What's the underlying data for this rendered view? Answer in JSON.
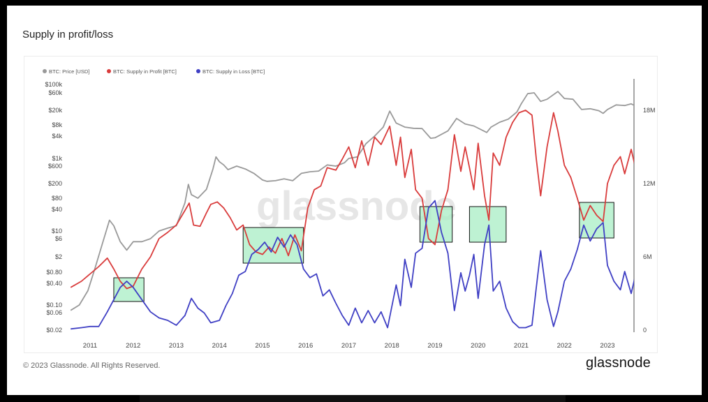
{
  "chart_data": {
    "type": "line",
    "title": "Supply in profit/loss",
    "watermark": "glassnode",
    "legend": [
      {
        "name": "BTC: Price [USD]",
        "color": "#999999"
      },
      {
        "name": "BTC: Supply in Profit [BTC]",
        "color": "#d93b3b"
      },
      {
        "name": "BTC: Supply in Loss [BTC]",
        "color": "#3f3fc4"
      }
    ],
    "x_ticks": [
      "2011",
      "2012",
      "2013",
      "2014",
      "2015",
      "2016",
      "2017",
      "2018",
      "2019",
      "2020",
      "2021",
      "2022",
      "2023"
    ],
    "y_left_ticks": [
      "$100k",
      "$60k",
      "$20k",
      "$8k",
      "$4k",
      "$1k",
      "$600",
      "$200",
      "$80",
      "$40",
      "$10",
      "$6",
      "$2",
      "$0.80",
      "$0.40",
      "$0.10",
      "$0.06",
      "$0.02"
    ],
    "y_right_ticks": [
      "18M",
      "12M",
      "6M",
      "0"
    ],
    "y_left_scale": "log",
    "y_right_range": [
      0,
      18000000
    ],
    "highlight_boxes": [
      {
        "x_from": 2011.55,
        "x_to": 2012.25
      },
      {
        "x_from": 2014.55,
        "x_to": 2015.95
      },
      {
        "x_from": 2018.65,
        "x_to": 2019.4
      },
      {
        "x_from": 2019.8,
        "x_to": 2020.65
      },
      {
        "x_from": 2022.35,
        "x_to": 2023.15
      }
    ],
    "series": [
      {
        "name": "BTC: Price [USD]",
        "axis": "left",
        "points": [
          [
            2010.55,
            0.07
          ],
          [
            2010.75,
            0.1
          ],
          [
            2010.95,
            0.25
          ],
          [
            2011.1,
            0.9
          ],
          [
            2011.3,
            5
          ],
          [
            2011.45,
            20
          ],
          [
            2011.55,
            14
          ],
          [
            2011.7,
            5
          ],
          [
            2011.85,
            3
          ],
          [
            2012.0,
            5
          ],
          [
            2012.2,
            5
          ],
          [
            2012.4,
            6
          ],
          [
            2012.6,
            10
          ],
          [
            2012.8,
            12
          ],
          [
            2013.0,
            14
          ],
          [
            2013.2,
            60
          ],
          [
            2013.28,
            190
          ],
          [
            2013.35,
            100
          ],
          [
            2013.5,
            80
          ],
          [
            2013.7,
            140
          ],
          [
            2013.85,
            500
          ],
          [
            2013.92,
            1100
          ],
          [
            2014.0,
            800
          ],
          [
            2014.1,
            650
          ],
          [
            2014.2,
            480
          ],
          [
            2014.4,
            600
          ],
          [
            2014.6,
            500
          ],
          [
            2014.8,
            380
          ],
          [
            2015.0,
            250
          ],
          [
            2015.1,
            230
          ],
          [
            2015.3,
            240
          ],
          [
            2015.5,
            270
          ],
          [
            2015.7,
            240
          ],
          [
            2015.9,
            380
          ],
          [
            2016.1,
            420
          ],
          [
            2016.3,
            440
          ],
          [
            2016.5,
            650
          ],
          [
            2016.7,
            600
          ],
          [
            2016.9,
            750
          ],
          [
            2017.0,
            1000
          ],
          [
            2017.2,
            1100
          ],
          [
            2017.4,
            2500
          ],
          [
            2017.6,
            4000
          ],
          [
            2017.8,
            7000
          ],
          [
            2017.95,
            19000
          ],
          [
            2018.1,
            9000
          ],
          [
            2018.3,
            7000
          ],
          [
            2018.5,
            6500
          ],
          [
            2018.7,
            6400
          ],
          [
            2018.9,
            3500
          ],
          [
            2019.0,
            3600
          ],
          [
            2019.3,
            5500
          ],
          [
            2019.5,
            12000
          ],
          [
            2019.7,
            8500
          ],
          [
            2019.9,
            7500
          ],
          [
            2020.2,
            5000
          ],
          [
            2020.3,
            7000
          ],
          [
            2020.5,
            9500
          ],
          [
            2020.7,
            11500
          ],
          [
            2020.9,
            18000
          ],
          [
            2021.0,
            30000
          ],
          [
            2021.15,
            57000
          ],
          [
            2021.3,
            60000
          ],
          [
            2021.45,
            35000
          ],
          [
            2021.6,
            40000
          ],
          [
            2021.85,
            65000
          ],
          [
            2022.0,
            42000
          ],
          [
            2022.2,
            40000
          ],
          [
            2022.4,
            21000
          ],
          [
            2022.6,
            22000
          ],
          [
            2022.8,
            19500
          ],
          [
            2022.9,
            16500
          ],
          [
            2023.0,
            21000
          ],
          [
            2023.2,
            28000
          ],
          [
            2023.4,
            27000
          ],
          [
            2023.55,
            30000
          ],
          [
            2023.65,
            26000
          ]
        ]
      },
      {
        "name": "BTC: Supply in Profit [BTC]",
        "axis": "right",
        "points": [
          [
            2010.55,
            3.5
          ],
          [
            2010.8,
            4
          ],
          [
            2011.0,
            4.6
          ],
          [
            2011.2,
            5.2
          ],
          [
            2011.4,
            5.9
          ],
          [
            2011.55,
            5.0
          ],
          [
            2011.7,
            4.0
          ],
          [
            2011.85,
            3.4
          ],
          [
            2012.0,
            3.6
          ],
          [
            2012.2,
            5.0
          ],
          [
            2012.4,
            6.0
          ],
          [
            2012.6,
            7.5
          ],
          [
            2012.8,
            8.0
          ],
          [
            2013.0,
            8.6
          ],
          [
            2013.2,
            9.8
          ],
          [
            2013.3,
            10.4
          ],
          [
            2013.4,
            8.6
          ],
          [
            2013.55,
            8.5
          ],
          [
            2013.7,
            9.6
          ],
          [
            2013.8,
            10.3
          ],
          [
            2013.95,
            10.5
          ],
          [
            2014.1,
            10.0
          ],
          [
            2014.25,
            9.2
          ],
          [
            2014.4,
            8.2
          ],
          [
            2014.55,
            8.6
          ],
          [
            2014.7,
            7.0
          ],
          [
            2014.85,
            6.4
          ],
          [
            2015.0,
            6.2
          ],
          [
            2015.15,
            6.8
          ],
          [
            2015.3,
            6.3
          ],
          [
            2015.45,
            7.5
          ],
          [
            2015.6,
            6.1
          ],
          [
            2015.75,
            7.8
          ],
          [
            2015.9,
            6.5
          ],
          [
            2016.05,
            10.0
          ],
          [
            2016.2,
            11.5
          ],
          [
            2016.35,
            11.8
          ],
          [
            2016.5,
            13.3
          ],
          [
            2016.7,
            13.1
          ],
          [
            2016.85,
            14.0
          ],
          [
            2017.0,
            15.0
          ],
          [
            2017.15,
            13.3
          ],
          [
            2017.3,
            15.5
          ],
          [
            2017.45,
            13.5
          ],
          [
            2017.6,
            15.8
          ],
          [
            2017.75,
            15.2
          ],
          [
            2017.95,
            16.7
          ],
          [
            2018.1,
            13.5
          ],
          [
            2018.2,
            15.8
          ],
          [
            2018.3,
            12.5
          ],
          [
            2018.45,
            14.8
          ],
          [
            2018.55,
            11.5
          ],
          [
            2018.7,
            10.8
          ],
          [
            2018.85,
            7.5
          ],
          [
            2019.0,
            7.0
          ],
          [
            2019.15,
            9.8
          ],
          [
            2019.3,
            11.5
          ],
          [
            2019.45,
            16.0
          ],
          [
            2019.6,
            13.0
          ],
          [
            2019.7,
            15.0
          ],
          [
            2019.8,
            13.3
          ],
          [
            2019.9,
            11.5
          ],
          [
            2020.0,
            15.3
          ],
          [
            2020.15,
            11.0
          ],
          [
            2020.25,
            9.0
          ],
          [
            2020.35,
            14.5
          ],
          [
            2020.5,
            13.5
          ],
          [
            2020.65,
            15.8
          ],
          [
            2020.8,
            17.0
          ],
          [
            2020.95,
            17.8
          ],
          [
            2021.1,
            18.0
          ],
          [
            2021.25,
            17.6
          ],
          [
            2021.35,
            14.0
          ],
          [
            2021.45,
            11.0
          ],
          [
            2021.6,
            15.0
          ],
          [
            2021.75,
            17.8
          ],
          [
            2021.85,
            16.3
          ],
          [
            2022.0,
            13.5
          ],
          [
            2022.15,
            12.5
          ],
          [
            2022.3,
            10.8
          ],
          [
            2022.45,
            9.0
          ],
          [
            2022.6,
            10.2
          ],
          [
            2022.75,
            9.4
          ],
          [
            2022.9,
            8.9
          ],
          [
            2023.0,
            12.0
          ],
          [
            2023.15,
            13.5
          ],
          [
            2023.3,
            14.2
          ],
          [
            2023.4,
            12.8
          ],
          [
            2023.55,
            14.8
          ],
          [
            2023.65,
            13.3
          ]
        ]
      },
      {
        "name": "BTC: Supply in Loss [BTC]",
        "axis": "right",
        "points": [
          [
            2010.55,
            0.1
          ],
          [
            2010.8,
            0.2
          ],
          [
            2011.0,
            0.3
          ],
          [
            2011.2,
            0.3
          ],
          [
            2011.4,
            1.5
          ],
          [
            2011.55,
            2.5
          ],
          [
            2011.7,
            3.5
          ],
          [
            2011.85,
            4.0
          ],
          [
            2012.0,
            3.5
          ],
          [
            2012.2,
            2.5
          ],
          [
            2012.4,
            1.5
          ],
          [
            2012.6,
            1.0
          ],
          [
            2012.8,
            0.8
          ],
          [
            2013.0,
            0.4
          ],
          [
            2013.2,
            1.2
          ],
          [
            2013.35,
            2.6
          ],
          [
            2013.5,
            1.8
          ],
          [
            2013.65,
            1.4
          ],
          [
            2013.8,
            0.6
          ],
          [
            2014.0,
            0.8
          ],
          [
            2014.15,
            2.0
          ],
          [
            2014.3,
            3.0
          ],
          [
            2014.45,
            4.5
          ],
          [
            2014.6,
            4.8
          ],
          [
            2014.75,
            6.2
          ],
          [
            2014.9,
            6.6
          ],
          [
            2015.05,
            7.2
          ],
          [
            2015.2,
            6.4
          ],
          [
            2015.35,
            7.6
          ],
          [
            2015.5,
            6.8
          ],
          [
            2015.65,
            7.8
          ],
          [
            2015.8,
            7.0
          ],
          [
            2015.95,
            5.0
          ],
          [
            2016.1,
            4.3
          ],
          [
            2016.25,
            4.6
          ],
          [
            2016.4,
            2.8
          ],
          [
            2016.55,
            3.3
          ],
          [
            2016.7,
            2.2
          ],
          [
            2016.85,
            1.2
          ],
          [
            2017.0,
            0.4
          ],
          [
            2017.15,
            1.8
          ],
          [
            2017.3,
            0.6
          ],
          [
            2017.45,
            1.6
          ],
          [
            2017.6,
            0.6
          ],
          [
            2017.75,
            1.5
          ],
          [
            2017.9,
            0.2
          ],
          [
            2018.1,
            3.7
          ],
          [
            2018.2,
            2.0
          ],
          [
            2018.3,
            5.8
          ],
          [
            2018.45,
            3.5
          ],
          [
            2018.55,
            6.3
          ],
          [
            2018.7,
            6.7
          ],
          [
            2018.85,
            10.0
          ],
          [
            2019.0,
            10.6
          ],
          [
            2019.15,
            8.0
          ],
          [
            2019.3,
            6.3
          ],
          [
            2019.45,
            1.6
          ],
          [
            2019.6,
            4.7
          ],
          [
            2019.7,
            3.2
          ],
          [
            2019.8,
            4.5
          ],
          [
            2019.9,
            6.2
          ],
          [
            2020.0,
            2.6
          ],
          [
            2020.15,
            7.0
          ],
          [
            2020.25,
            8.6
          ],
          [
            2020.35,
            3.2
          ],
          [
            2020.5,
            4.0
          ],
          [
            2020.65,
            1.8
          ],
          [
            2020.8,
            0.7
          ],
          [
            2020.95,
            0.2
          ],
          [
            2021.1,
            0.2
          ],
          [
            2021.25,
            0.4
          ],
          [
            2021.35,
            3.5
          ],
          [
            2021.45,
            6.5
          ],
          [
            2021.6,
            2.5
          ],
          [
            2021.75,
            0.3
          ],
          [
            2021.85,
            1.5
          ],
          [
            2022.0,
            4.0
          ],
          [
            2022.15,
            5.0
          ],
          [
            2022.3,
            6.6
          ],
          [
            2022.45,
            8.6
          ],
          [
            2022.6,
            7.3
          ],
          [
            2022.75,
            8.3
          ],
          [
            2022.9,
            8.8
          ],
          [
            2023.0,
            5.3
          ],
          [
            2023.15,
            4.0
          ],
          [
            2023.3,
            3.3
          ],
          [
            2023.4,
            4.8
          ],
          [
            2023.55,
            3.0
          ],
          [
            2023.65,
            4.5
          ]
        ]
      }
    ]
  },
  "footer": {
    "copyright": "© 2023 Glassnode. All Rights Reserved.",
    "brand": "glassnode"
  }
}
